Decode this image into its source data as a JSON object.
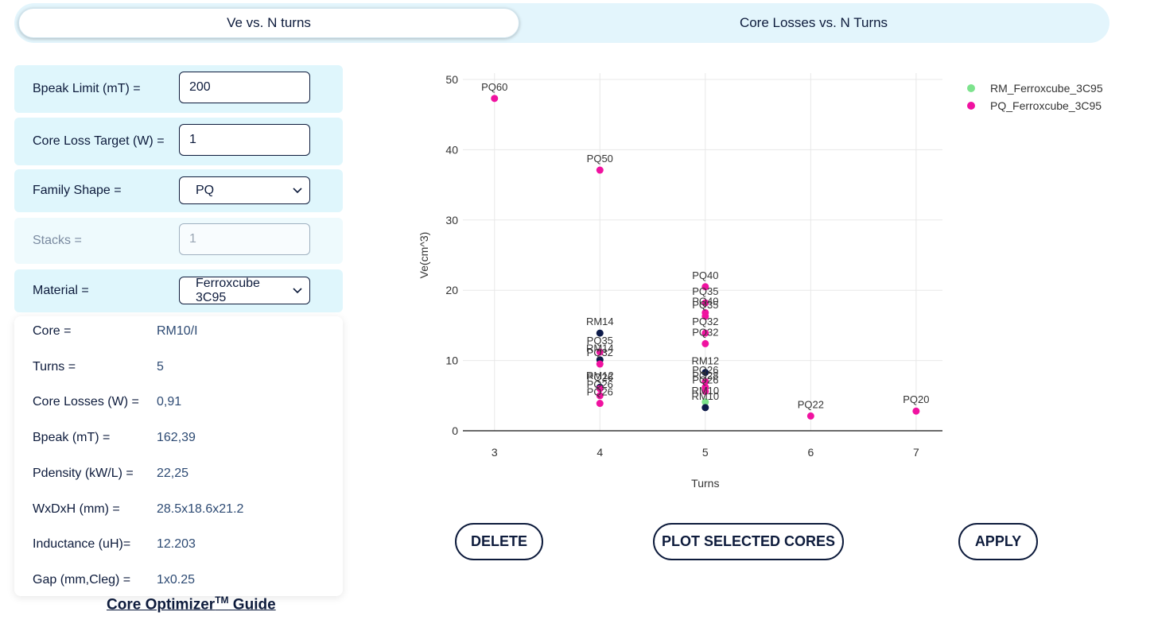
{
  "tabs": [
    {
      "label": "Ve vs. N turns",
      "active": true
    },
    {
      "label": "Core Losses vs. N Turns",
      "active": false
    }
  ],
  "form": {
    "bpeak_limit": {
      "label": "Bpeak Limit (mT) =",
      "value": "200"
    },
    "core_loss_target": {
      "label": "Core Loss Target (W) =",
      "value": "1"
    },
    "family_shape": {
      "label": "Family Shape =",
      "value": "PQ"
    },
    "stacks": {
      "label": "Stacks =",
      "value": "1"
    },
    "material": {
      "label": "Material =",
      "value": "Ferroxcube 3C95"
    }
  },
  "results": [
    {
      "label": "Core =",
      "value": "RM10/I"
    },
    {
      "label": "Turns =",
      "value": "5"
    },
    {
      "label": "Core Losses (W) =",
      "value": "0,91"
    },
    {
      "label": "Bpeak (mT) =",
      "value": "162,39"
    },
    {
      "label": "Pdensity (kW/L) =",
      "value": "22,25"
    },
    {
      "label": "WxDxH (mm) =",
      "value": "28.5x18.6x21.2"
    },
    {
      "label": "Inductance (uH)=",
      "value": "12.203"
    },
    {
      "label": "Gap (mm,Cleg) =",
      "value": "1x0.25"
    }
  ],
  "guide": {
    "text": "Core Optimizer",
    "sup": "TM",
    "suffix": " Guide"
  },
  "buttons": {
    "delete": "DELETE",
    "plot": "PLOT SELECTED CORES",
    "apply": "APPLY"
  },
  "colors": {
    "rm": "#7de38d",
    "pq": "#f012a0",
    "selected": "#0d1b4a",
    "accent": "#0d1b3c"
  },
  "chart_data": {
    "type": "scatter",
    "xlabel": "Turns",
    "ylabel": "Ve(cm^3)",
    "xlim": [
      2.7,
      7.25
    ],
    "ylim": [
      0,
      50
    ],
    "xticks": [
      3,
      4,
      5,
      6,
      7
    ],
    "yticks": [
      0,
      10,
      20,
      30,
      40,
      50
    ],
    "grid": true,
    "legend_position": "top-right",
    "series": [
      {
        "name": "RM_Ferroxcube_3C95",
        "color": "#7de38d",
        "points": [
          {
            "x": 4,
            "y": 13.9,
            "label": "RM14",
            "selected": true
          },
          {
            "x": 4,
            "y": 10.1,
            "label": "RM14",
            "selected": true
          },
          {
            "x": 4,
            "y": 6.2,
            "label": "RM12",
            "selected": true
          },
          {
            "x": 5,
            "y": 8.3,
            "label": "RM12",
            "selected": true
          },
          {
            "x": 5,
            "y": 4.1,
            "label": "RM10",
            "selected": false
          },
          {
            "x": 5,
            "y": 3.3,
            "label": "RM10",
            "selected": true
          }
        ]
      },
      {
        "name": "PQ_Ferroxcube_3C95",
        "color": "#f012a0",
        "points": [
          {
            "x": 3,
            "y": 47.3,
            "label": "PQ60"
          },
          {
            "x": 4,
            "y": 37.1,
            "label": "PQ50"
          },
          {
            "x": 4,
            "y": 11.2,
            "label": "PQ35"
          },
          {
            "x": 4,
            "y": 9.5,
            "label": "PQ32"
          },
          {
            "x": 4,
            "y": 6.0,
            "label": "PQ26"
          },
          {
            "x": 4,
            "y": 5.0,
            "label": "PQ26"
          },
          {
            "x": 4,
            "y": 3.9,
            "label": "PQ26"
          },
          {
            "x": 5,
            "y": 20.5,
            "label": "PQ40"
          },
          {
            "x": 5,
            "y": 18.2,
            "label": "PQ35"
          },
          {
            "x": 5,
            "y": 16.8,
            "label": "PQ40"
          },
          {
            "x": 5,
            "y": 16.3,
            "label": "PQ35"
          },
          {
            "x": 5,
            "y": 13.9,
            "label": "PQ32"
          },
          {
            "x": 5,
            "y": 12.4,
            "label": "PQ32"
          },
          {
            "x": 5,
            "y": 7.0,
            "label": "PQ26"
          },
          {
            "x": 5,
            "y": 6.2,
            "label": "PQ28"
          },
          {
            "x": 5,
            "y": 5.6,
            "label": "PQ26"
          },
          {
            "x": 6,
            "y": 2.1,
            "label": "PQ22"
          },
          {
            "x": 7,
            "y": 2.8,
            "label": "PQ20"
          }
        ]
      }
    ]
  }
}
